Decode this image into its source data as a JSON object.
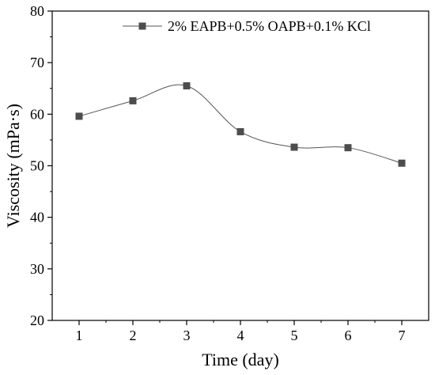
{
  "chart_data": {
    "type": "scatter",
    "xlabel": "Time (day)",
    "ylabel": "Viscosity (mPa·s)",
    "xlim": [
      0.5,
      7.5
    ],
    "ylim": [
      20,
      80
    ],
    "xticks": [
      1,
      2,
      3,
      4,
      5,
      6,
      7
    ],
    "yticks": [
      20,
      30,
      40,
      50,
      60,
      70,
      80
    ],
    "grid": false,
    "legend_position": "top-right",
    "series": [
      {
        "name": "2% EAPB+0.5% OAPB+0.1% KCl",
        "marker": "square",
        "color": "#4d4d4d",
        "fit_curve": "smooth",
        "x": [
          1,
          2,
          3,
          4,
          5,
          6,
          7
        ],
        "y": [
          59.6,
          62.6,
          65.5,
          56.6,
          53.6,
          53.5,
          50.5
        ]
      }
    ]
  }
}
